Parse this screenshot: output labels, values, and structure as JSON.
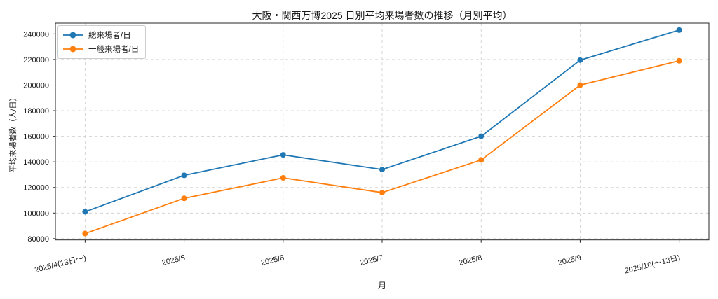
{
  "chart_data": {
    "type": "line",
    "title": "大阪・関西万博2025 日別平均来場者数の推移（月別平均）",
    "xlabel": "月",
    "ylabel": "平均来場者数（人/日）",
    "categories": [
      "2025/4(13日〜)",
      "2025/5",
      "2025/6",
      "2025/7",
      "2025/8",
      "2025/9",
      "2025/10(〜13日)"
    ],
    "series": [
      {
        "name": "総来場者/日",
        "color": "#1f77b4",
        "values": [
          101000,
          129500,
          145500,
          134000,
          160000,
          219500,
          243000
        ]
      },
      {
        "name": "一般来場者/日",
        "color": "#ff7f0e",
        "values": [
          84000,
          111500,
          127500,
          116000,
          141500,
          200000,
          219000
        ]
      }
    ],
    "yticks": [
      80000,
      100000,
      120000,
      140000,
      160000,
      180000,
      200000,
      220000,
      240000
    ],
    "ylim": [
      79000,
      248400
    ],
    "grid": true,
    "grid_style": "dashed",
    "legend_position": "upper-left",
    "x_tick_rotation_deg": 14,
    "colors": {
      "grid": "#cccccc",
      "spine": "#262626",
      "text": "#1a1a1a"
    }
  }
}
